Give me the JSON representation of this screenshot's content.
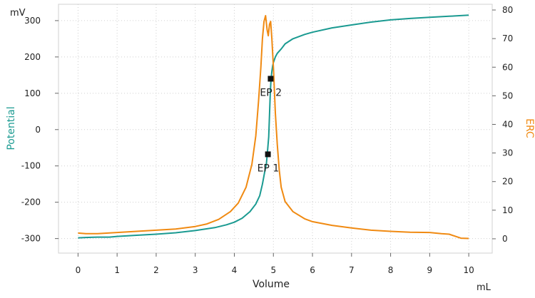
{
  "chart_data": {
    "type": "line",
    "x_title": "Volume",
    "x_unit": "mL",
    "xlim": [
      -0.5,
      10.6
    ],
    "x_ticks": [
      0,
      1,
      2,
      3,
      4,
      5,
      6,
      7,
      8,
      9,
      10
    ],
    "y_left": {
      "title": "Potential",
      "unit": "mV",
      "ylim": [
        -340,
        345
      ],
      "ticks": [
        -300,
        -200,
        -100,
        0,
        100,
        200,
        300
      ],
      "color": "#1a9a91"
    },
    "y_right": {
      "title": "ERC",
      "ylim": [
        -5,
        82
      ],
      "ticks": [
        0,
        10,
        20,
        30,
        40,
        50,
        60,
        70,
        80
      ],
      "color": "#f08a12"
    },
    "grid": true,
    "series": [
      {
        "name": "Potential",
        "axis": "left",
        "color": "#1a9a91",
        "x": [
          0,
          0.2,
          0.5,
          0.8,
          1.0,
          1.5,
          2.0,
          2.5,
          3.0,
          3.5,
          3.8,
          4.0,
          4.2,
          4.4,
          4.55,
          4.65,
          4.72,
          4.78,
          4.82,
          4.85,
          4.88,
          4.9,
          4.92,
          4.94,
          4.96,
          4.98,
          5.0,
          5.05,
          5.1,
          5.2,
          5.3,
          5.5,
          5.8,
          6.0,
          6.5,
          7.0,
          7.5,
          8.0,
          8.5,
          9.0,
          9.5,
          10.0
        ],
        "y": [
          -298,
          -297,
          -296,
          -296,
          -294,
          -291,
          -288,
          -284,
          -278,
          -270,
          -262,
          -255,
          -244,
          -226,
          -205,
          -182,
          -150,
          -115,
          -95,
          -60,
          -20,
          40,
          100,
          140,
          160,
          175,
          185,
          200,
          210,
          222,
          236,
          250,
          262,
          268,
          280,
          288,
          296,
          302,
          306,
          309,
          312,
          315
        ]
      },
      {
        "name": "ERC",
        "axis": "right",
        "color": "#f08a12",
        "x": [
          0,
          0.2,
          0.5,
          1.0,
          1.5,
          2.0,
          2.5,
          3.0,
          3.3,
          3.6,
          3.9,
          4.1,
          4.3,
          4.45,
          4.55,
          4.62,
          4.68,
          4.72,
          4.76,
          4.8,
          4.84,
          4.87,
          4.9,
          4.93,
          4.96,
          5.0,
          5.05,
          5.1,
          5.15,
          5.2,
          5.3,
          5.5,
          5.8,
          6.0,
          6.5,
          7.0,
          7.5,
          8.0,
          8.5,
          9.0,
          9.3,
          9.5,
          9.8,
          10.0
        ],
        "y": [
          2,
          1.8,
          1.8,
          2.2,
          2.6,
          3,
          3.4,
          4.3,
          5.2,
          6.8,
          9.5,
          12.5,
          18,
          26,
          36,
          48,
          60,
          70,
          76,
          78,
          73,
          71,
          75,
          76,
          70,
          60,
          44,
          33,
          24,
          18,
          13,
          9.5,
          7,
          6,
          4.7,
          3.8,
          3,
          2.6,
          2.3,
          2.2,
          1.8,
          1.6,
          0.2,
          0.1
        ]
      }
    ],
    "markers": [
      {
        "label": "EP 1",
        "x": 4.86,
        "y": -68
      },
      {
        "label": "EP 2",
        "x": 4.93,
        "y": 140
      }
    ]
  }
}
